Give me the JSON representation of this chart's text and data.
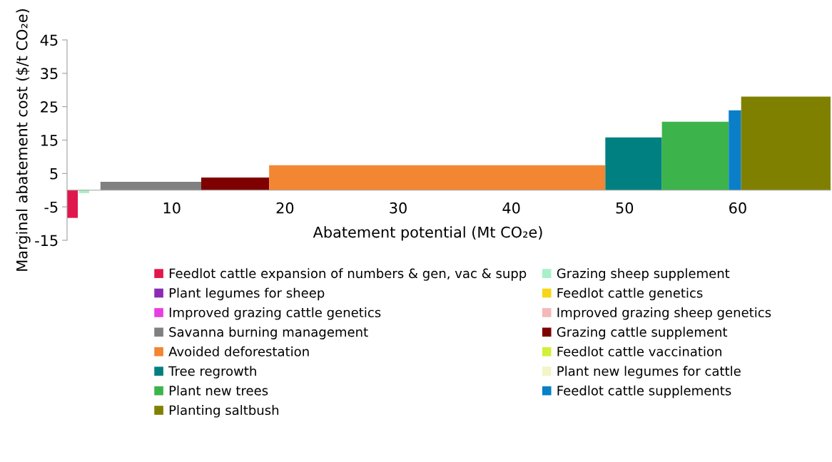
{
  "chart_data": {
    "type": "area",
    "ylabel": "Marginal abatement cost ($/t CO₂e)",
    "xlabel": "Abatement potential (Mt CO₂e)",
    "xlim": [
      0.75,
      68.2
    ],
    "xticks": [
      10,
      20,
      30,
      40,
      50,
      60
    ],
    "ylim": [
      -15,
      45
    ],
    "yticks": [
      -15,
      -5,
      5,
      15,
      25,
      35,
      45
    ],
    "grid": false,
    "legend": "bottom",
    "series": [
      {
        "name": "Feedlot cattle expansion of numbers & gen, vac & supp",
        "color": "#e0174d",
        "x": [
          0.75,
          1.7
        ],
        "values": [
          -8.3,
          -8.3
        ]
      },
      {
        "name": "Grazing sheep supplement",
        "color": "#a8f0c8",
        "x": [
          1.8,
          2.7
        ],
        "values": [
          -0.9,
          -0.9
        ]
      },
      {
        "name": "Plant legumes for sheep",
        "color": "#8b2bb5"
      },
      {
        "name": "Feedlot cattle genetics",
        "color": "#f7d618"
      },
      {
        "name": "Improved grazing cattle genetics",
        "color": "#e83fe0"
      },
      {
        "name": "Improved grazing sheep genetics",
        "color": "#f5b8b8"
      },
      {
        "name": "Savanna burning management",
        "color": "#808080",
        "x": [
          3.7,
          12.6
        ],
        "values": [
          2.5,
          2.5
        ]
      },
      {
        "name": "Grazing cattle supplement",
        "color": "#7f0000",
        "x": [
          12.6,
          18.6
        ],
        "values": [
          3.8,
          3.8
        ]
      },
      {
        "name": "Avoided deforestation",
        "color": "#f28632",
        "x": [
          18.6,
          48.3
        ],
        "values": [
          7.5,
          7.5
        ]
      },
      {
        "name": "Feedlot cattle vaccination",
        "color": "#d4ef3a"
      },
      {
        "name": "Tree regrowth",
        "color": "#008080",
        "x": [
          48.3,
          53.3
        ],
        "values": [
          15.8,
          15.8
        ]
      },
      {
        "name": "Plant new legumes for cattle",
        "color": "#f2f5c8"
      },
      {
        "name": "Plant new trees",
        "color": "#3cb44b",
        "x": [
          53.3,
          59.2
        ],
        "values": [
          20.5,
          20.5
        ]
      },
      {
        "name": "Feedlot cattle supplements",
        "color": "#0a7fc8",
        "x": [
          59.2,
          60.3
        ],
        "values": [
          23.9,
          23.9
        ]
      },
      {
        "name": "Planting saltbush",
        "color": "#808000",
        "x": [
          60.3,
          68.2
        ],
        "values": [
          28,
          28
        ]
      }
    ]
  }
}
